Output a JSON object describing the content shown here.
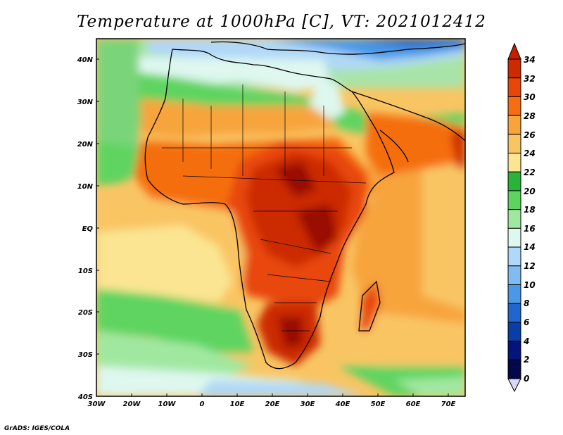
{
  "title": "Temperature at 1000hPa [C], VT: 2021012412",
  "footer": "GrADS: IGES/COLA",
  "map": {
    "lon_range": [
      -30,
      75
    ],
    "lat_range": [
      -40,
      45
    ],
    "lon_ticks": [
      "30W",
      "20W",
      "10W",
      "0",
      "10E",
      "20E",
      "30E",
      "40E",
      "50E",
      "60E",
      "70E"
    ],
    "lat_ticks": [
      "40N",
      "30N",
      "20N",
      "10N",
      "EQ",
      "10S",
      "20S",
      "30S",
      "40S"
    ]
  },
  "colorbar": {
    "labels": [
      "34",
      "32",
      "30",
      "28",
      "26",
      "24",
      "22",
      "20",
      "18",
      "16",
      "14",
      "12",
      "10",
      "8",
      "6",
      "4",
      "2",
      "0"
    ],
    "colors": [
      "#9a0a00",
      "#cc2a00",
      "#e8470a",
      "#f56e10",
      "#f7a43c",
      "#f9c563",
      "#fbe592",
      "#2ab33a",
      "#5ed460",
      "#a0e8a0",
      "#def7ef",
      "#b0d8f8",
      "#80bcf0",
      "#4a98e6",
      "#2066cc",
      "#0a3ea6",
      "#05147a",
      "#04084a"
    ],
    "over_color": "#c81e00",
    "under_color": "#d8d8f8"
  }
}
